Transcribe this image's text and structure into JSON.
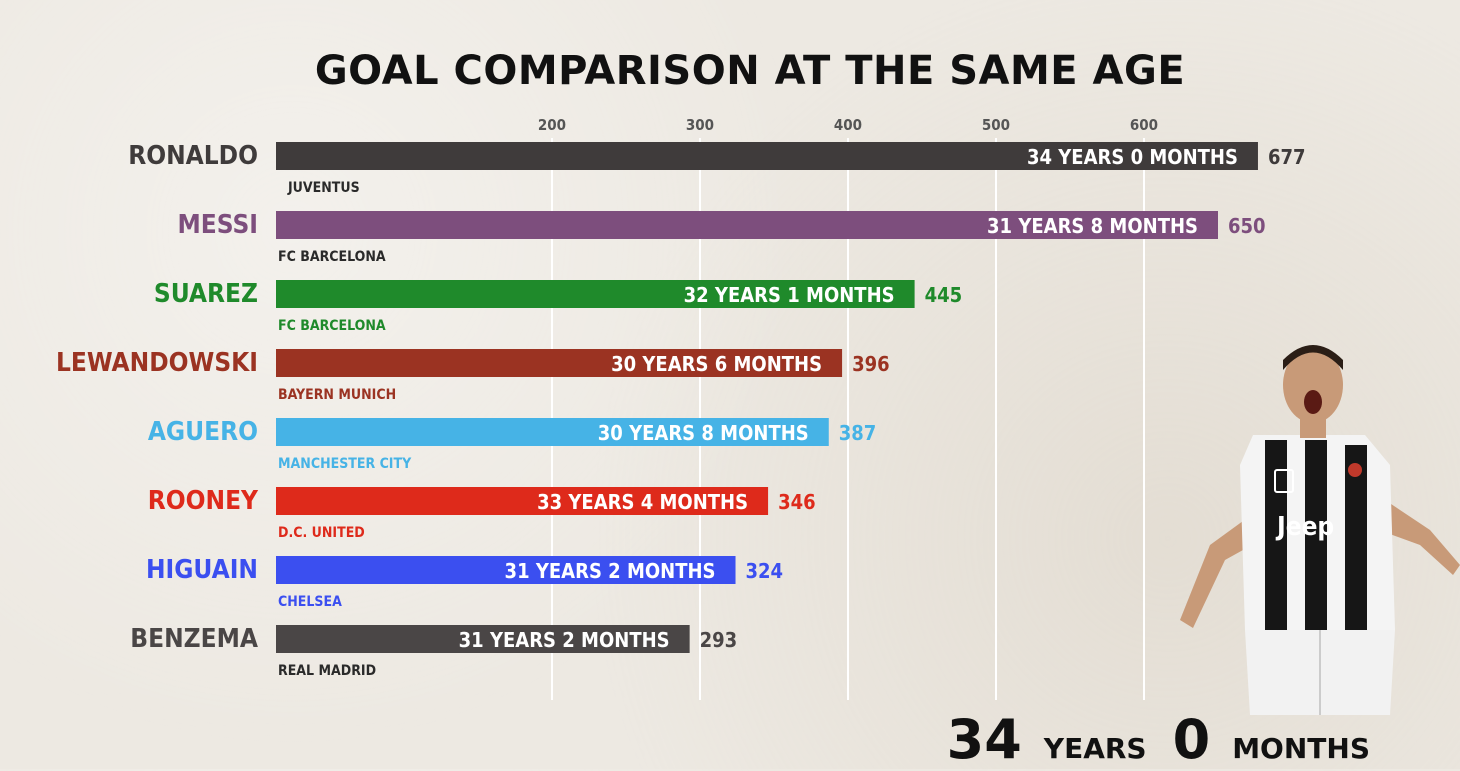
{
  "title": "GOAL COMPARISON AT THE SAME AGE",
  "age_readout": {
    "years": "34",
    "years_label": "YEARS",
    "months": "0",
    "months_label": "MONTHS"
  },
  "chart_data": {
    "type": "bar",
    "orientation": "horizontal",
    "title": "GOAL COMPARISON AT THE SAME AGE",
    "xticks": [
      200,
      300,
      400,
      500,
      600
    ],
    "grid": true,
    "categories": [
      "RONALDO",
      "MESSI",
      "SUAREZ",
      "LEWANDOWSKI",
      "AGUERO",
      "ROONEY",
      "HIGUAIN",
      "BENZEMA"
    ],
    "values": [
      677,
      650,
      445,
      396,
      387,
      346,
      324,
      293
    ],
    "clubs": [
      "JUVENTUS",
      "FC BARCELONA",
      "FC BARCELONA",
      "BAYERN MUNICH",
      "MANCHESTER CITY",
      "D.C. UNITED",
      "CHELSEA",
      "REAL MADRID"
    ],
    "ages": [
      "34 YEARS 0 MONTHS",
      "31 YEARS 8 MONTHS",
      "32 YEARS 1 MONTHS",
      "30 YEARS 6 MONTHS",
      "30 YEARS 8 MONTHS",
      "33 YEARS 4 MONTHS",
      "31 YEARS 2 MONTHS",
      "31 YEARS 2 MONTHS"
    ],
    "colors": [
      "#3f3b3b",
      "#7d4e7d",
      "#1f8a2b",
      "#9b3322",
      "#46b3e6",
      "#de2a1b",
      "#3b4ff0",
      "#4a4646"
    ],
    "label_colors": [
      "#3f3b3b",
      "#7d4e7d",
      "#1f8a2b",
      "#9b3322",
      "#46b3e6",
      "#de2a1b",
      "#3b4ff0",
      "#4a4646"
    ]
  }
}
